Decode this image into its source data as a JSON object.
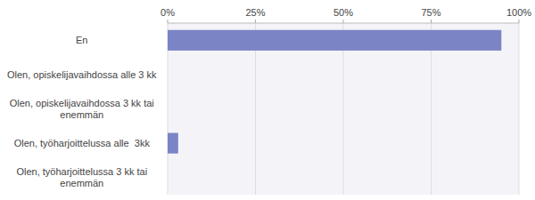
{
  "chart_data": {
    "type": "bar",
    "orientation": "horizontal",
    "categories": [
      "Olen, työharjoittelussa 3 kk tai\nenemmän",
      "Olen, työharjoittelussa alle  3kk",
      "Olen, opiskelijavaihdossa 3 kk tai\nenemmän",
      "Olen, opiskelijavaihdossa alle 3 kk",
      "En"
    ],
    "values": [
      0,
      3,
      0,
      0,
      95
    ],
    "color": "#7b84c4",
    "xlim": [
      0,
      100
    ],
    "xticks": [
      {
        "value": 0,
        "label": "0%"
      },
      {
        "value": 25,
        "label": "25%"
      },
      {
        "value": 50,
        "label": "50%"
      },
      {
        "value": 75,
        "label": "75%"
      },
      {
        "value": 100,
        "label": "100%"
      }
    ],
    "grid": true
  }
}
